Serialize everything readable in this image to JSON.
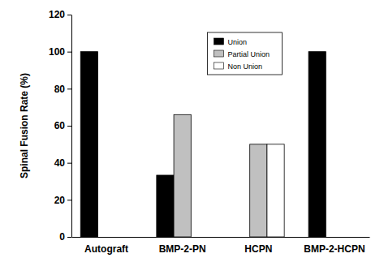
{
  "chart_data": {
    "type": "bar",
    "categories": [
      "Autograft",
      "BMP-2-PN",
      "HCPN",
      "BMP-2-HCPN"
    ],
    "series": [
      {
        "name": "Union",
        "color": "#000000",
        "values": [
          100,
          33.3,
          0,
          100
        ]
      },
      {
        "name": "Partial Union",
        "color": "#c0c0c0",
        "values": [
          0,
          66,
          50,
          0
        ]
      },
      {
        "name": "Non Union",
        "color": "#ffffff",
        "values": [
          0,
          0,
          50,
          0
        ]
      }
    ],
    "y_label": "Spinal Fusion Rate (%)",
    "ylim": [
      0,
      120
    ],
    "yticks": [
      0,
      20,
      40,
      60,
      80,
      100,
      120
    ],
    "grid": false,
    "legend": "top"
  }
}
